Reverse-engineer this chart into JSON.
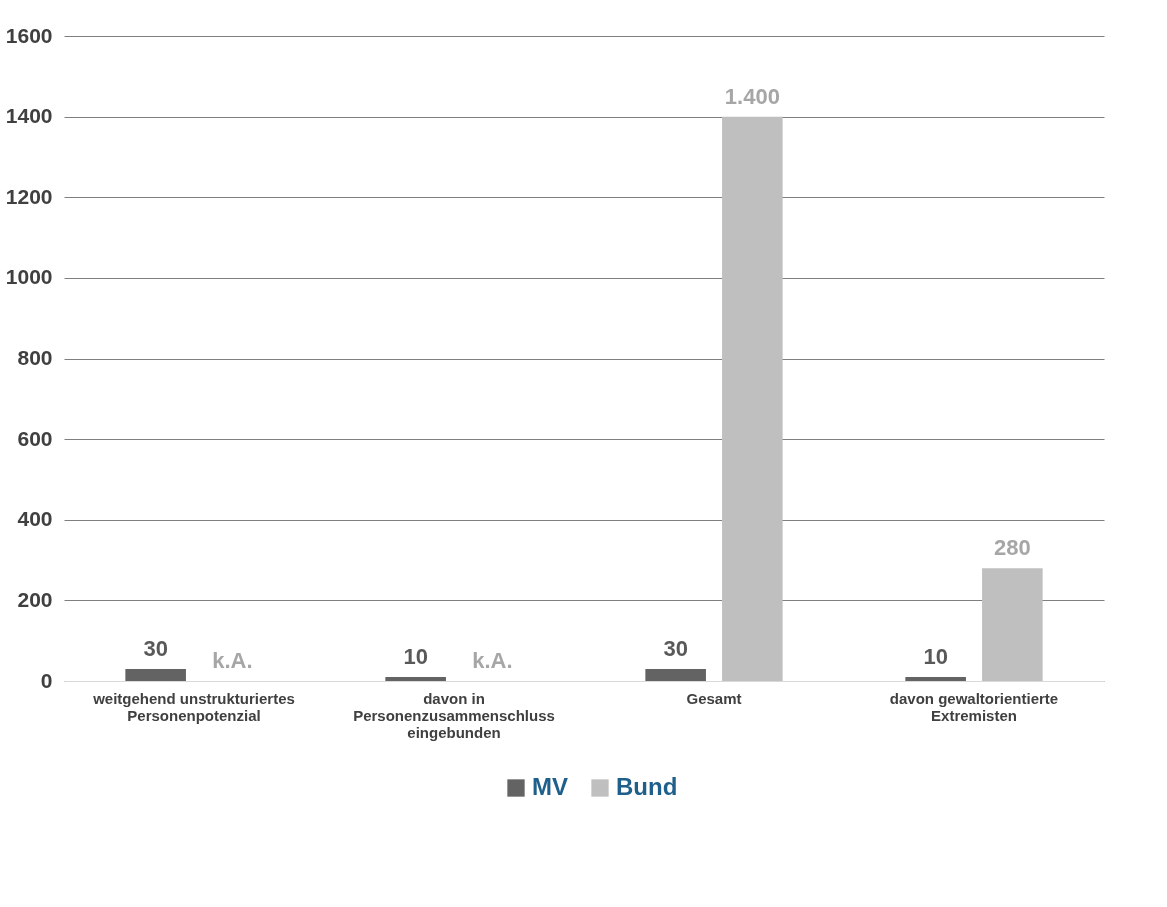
{
  "chart_data": {
    "type": "bar",
    "categories": [
      "weitgehend unstrukturiertes\nPersonenpotenzial",
      "davon in\nPersonenzusammenschluss\neingebunden",
      "Gesamt",
      "davon gewaltorientierte\nExtremisten"
    ],
    "series": [
      {
        "name": "MV",
        "color": "#636363",
        "values": [
          30,
          10,
          30,
          10
        ],
        "value_labels": [
          "30",
          "10",
          "30",
          "10"
        ]
      },
      {
        "name": "Bund",
        "color": "#bfbfbf",
        "values": [
          null,
          null,
          1400,
          280
        ],
        "value_labels": [
          "k.A.",
          "k.A.",
          "1.400",
          "280"
        ]
      }
    ],
    "ylim": [
      0,
      1600
    ],
    "yticks": [
      0,
      200,
      400,
      600,
      800,
      1000,
      1200,
      1400,
      1600
    ],
    "grid": "y",
    "legend": "bottom"
  }
}
